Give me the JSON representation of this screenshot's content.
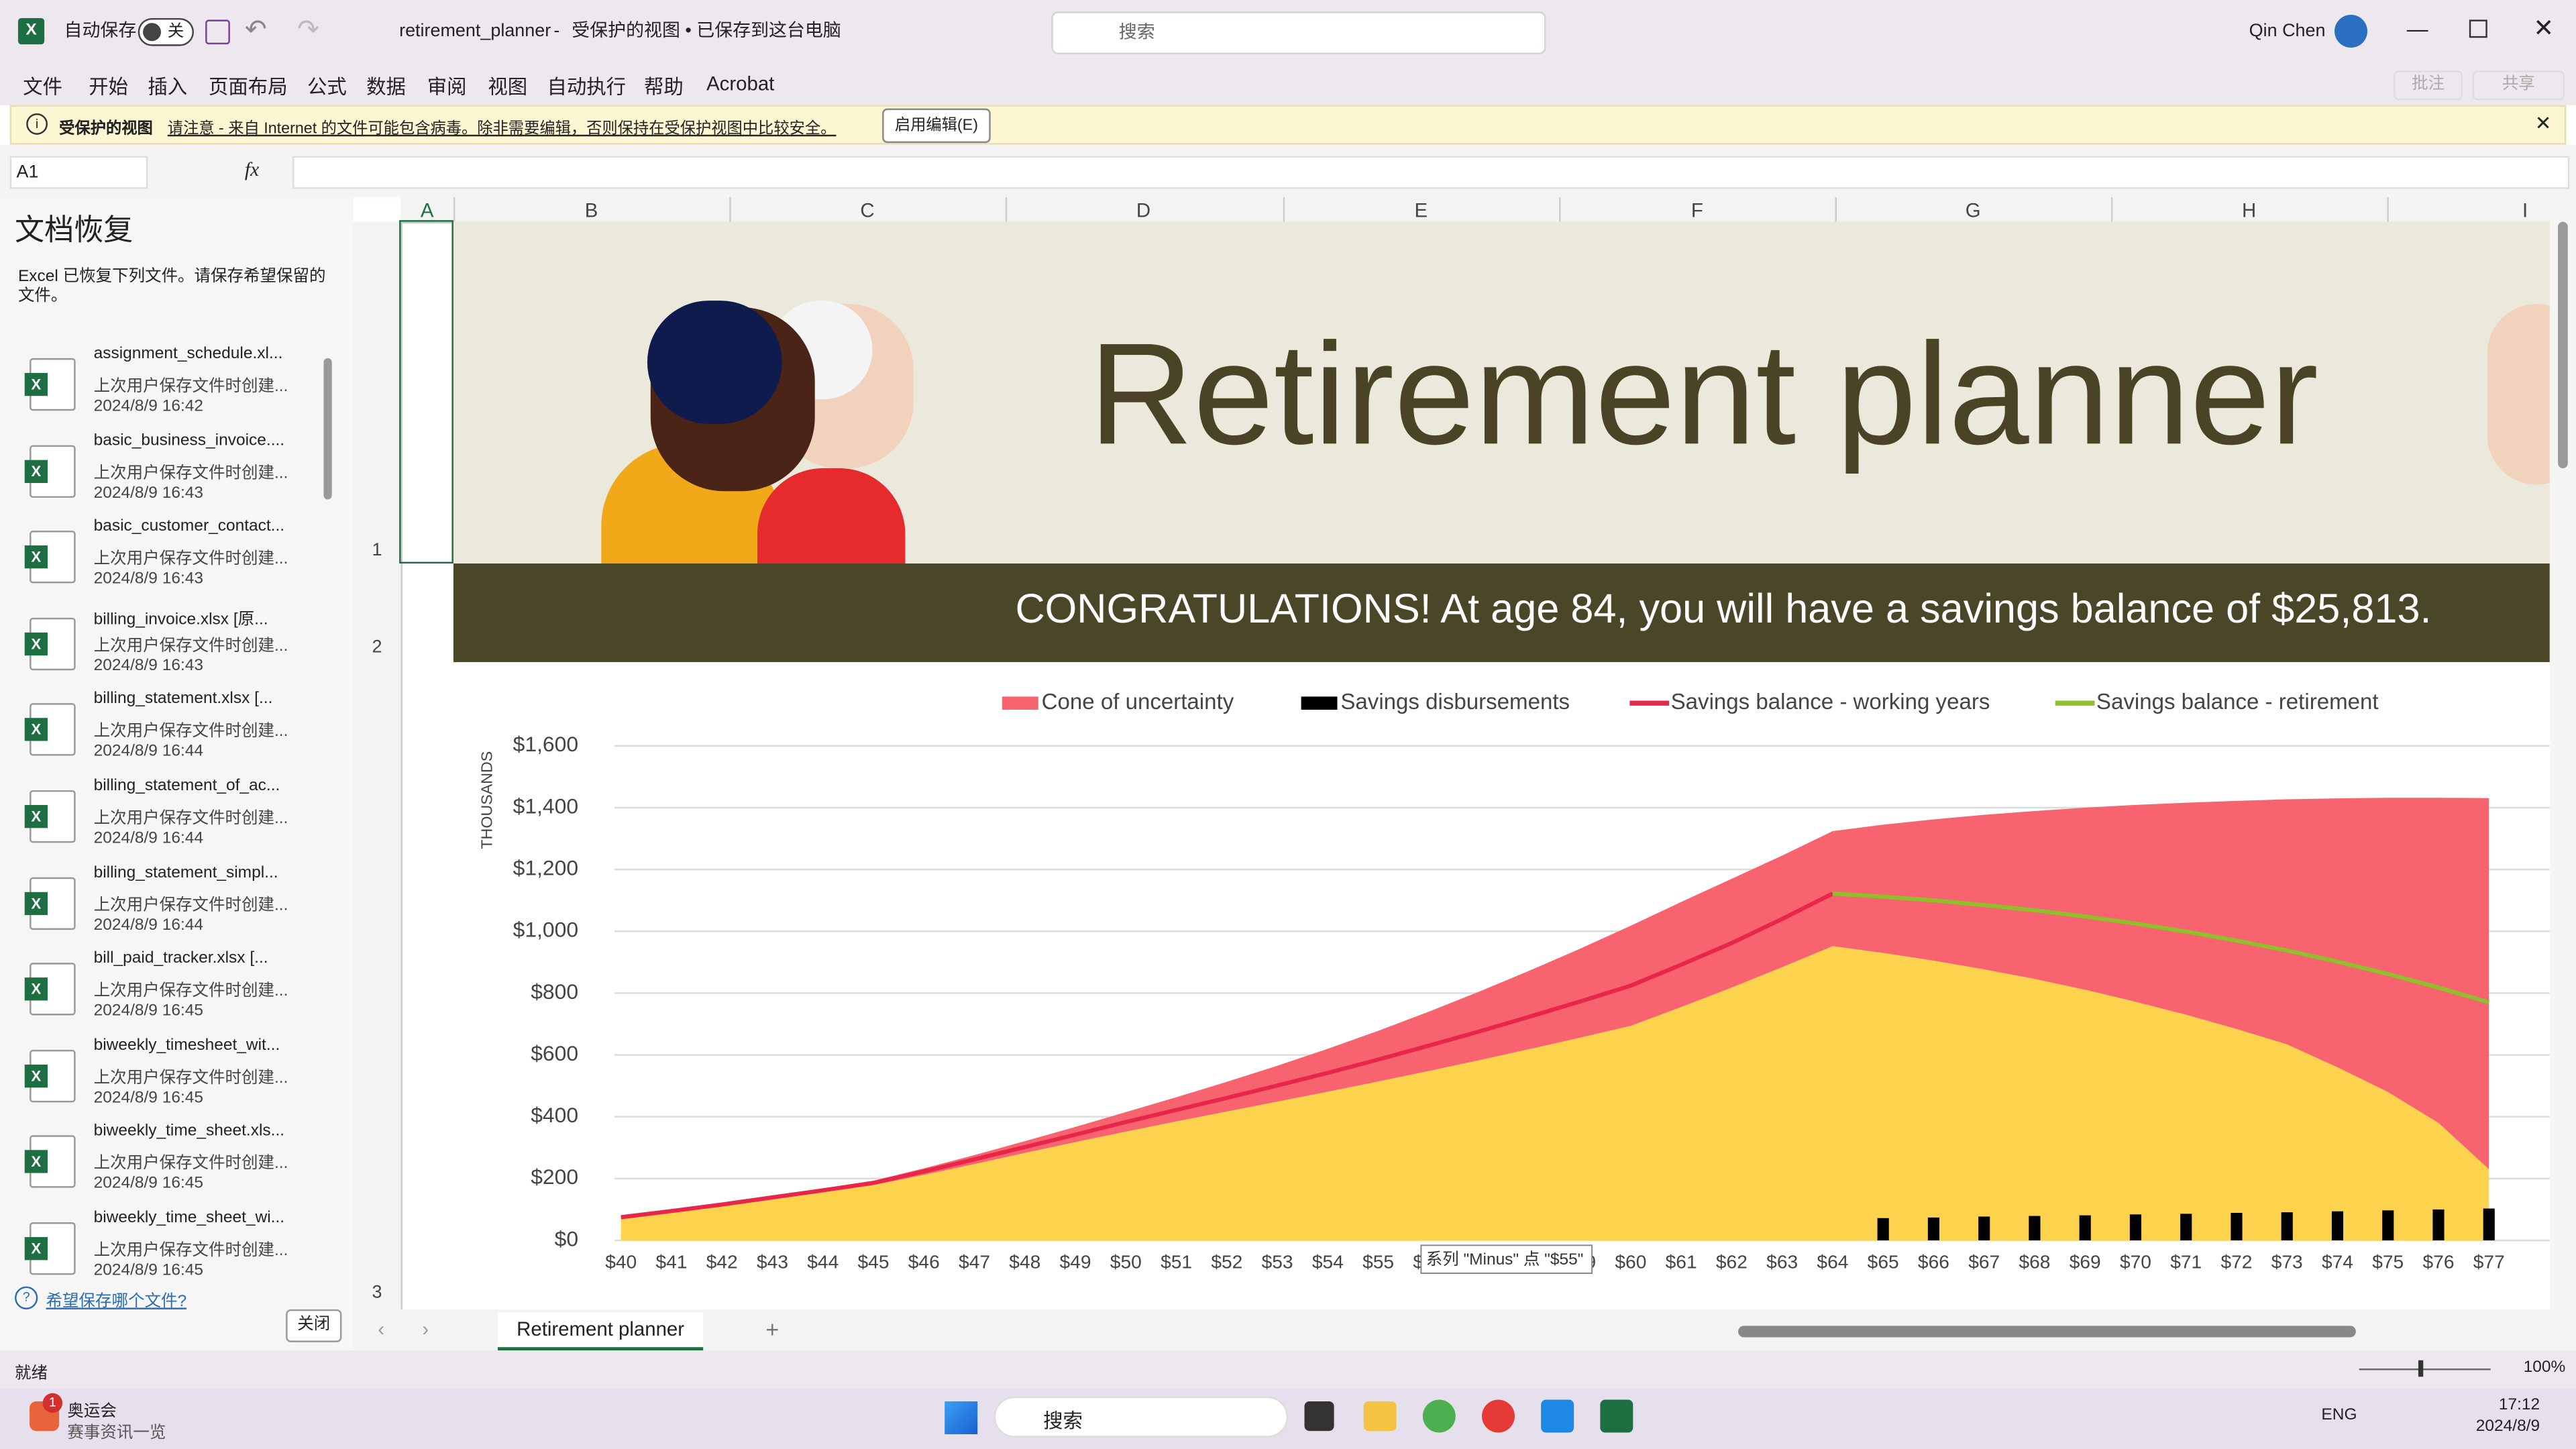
{
  "titlebar": {
    "autosave": "自动保存",
    "toggle": "关",
    "filename": "retirement_planner",
    "separator": "-",
    "status": "受保护的视图 • 已保存到这台电脑",
    "search": "搜索",
    "user": "Qin Chen"
  },
  "ribbon": {
    "tabs": [
      "文件",
      "开始",
      "插入",
      "页面布局",
      "公式",
      "数据",
      "审阅",
      "视图",
      "自动执行",
      "帮助",
      "Acrobat"
    ],
    "comments": "批注",
    "share": "共享"
  },
  "protected_view": {
    "label": "受保护的视图",
    "message": "请注意 - 来自 Internet 的文件可能包含病毒。除非需要编辑，否则保持在受保护视图中比较安全。",
    "button": "启用编辑(E)"
  },
  "formula_bar": {
    "name_box": "A1",
    "fx": "fx"
  },
  "recovery": {
    "title": "文档恢复",
    "description": "Excel 已恢复下列文件。请保存希望保留的文件。",
    "files": [
      {
        "name": "assignment_schedule.xl...",
        "note": "上次用户保存文件时创建...",
        "time": "2024/8/9 16:42"
      },
      {
        "name": "basic_business_invoice....",
        "note": "上次用户保存文件时创建...",
        "time": "2024/8/9 16:43"
      },
      {
        "name": "basic_customer_contact...",
        "note": "上次用户保存文件时创建...",
        "time": "2024/8/9 16:43"
      },
      {
        "name": "billing_invoice.xlsx [原...",
        "note": "上次用户保存文件时创建...",
        "time": "2024/8/9 16:43"
      },
      {
        "name": "billing_statement.xlsx [...",
        "note": "上次用户保存文件时创建...",
        "time": "2024/8/9 16:44"
      },
      {
        "name": "billing_statement_of_ac...",
        "note": "上次用户保存文件时创建...",
        "time": "2024/8/9 16:44"
      },
      {
        "name": "billing_statement_simpl...",
        "note": "上次用户保存文件时创建...",
        "time": "2024/8/9 16:44"
      },
      {
        "name": "bill_paid_tracker.xlsx [...",
        "note": "上次用户保存文件时创建...",
        "time": "2024/8/9 16:45"
      },
      {
        "name": "biweekly_timesheet_wit...",
        "note": "上次用户保存文件时创建...",
        "time": "2024/8/9 16:45"
      },
      {
        "name": "biweekly_time_sheet.xls...",
        "note": "上次用户保存文件时创建...",
        "time": "2024/8/9 16:45"
      },
      {
        "name": "biweekly_time_sheet_wi...",
        "note": "上次用户保存文件时创建...",
        "time": "2024/8/9 16:45"
      }
    ],
    "link": "希望保存哪个文件?",
    "close": "关闭"
  },
  "sheet": {
    "columns": [
      "A",
      "B",
      "C",
      "D",
      "E",
      "F",
      "G",
      "H",
      "I"
    ],
    "rows": [
      1,
      2,
      3
    ],
    "title": "Retirement planner",
    "banner": "CONGRATULATIONS! At age 84, you will have a savings balance of $25,813."
  },
  "chart_data": {
    "type": "combo",
    "y_label": "THOUSANDS",
    "tooltip": "系列 \"Minus\" 点 \"$55\"",
    "grid": true,
    "categories": [
      "$40",
      "$41",
      "$42",
      "$43",
      "$44",
      "$45",
      "$46",
      "$47",
      "$48",
      "$49",
      "$50",
      "$51",
      "$52",
      "$53",
      "$54",
      "$55",
      "$56",
      "$57",
      "$58",
      "$59",
      "$60",
      "$61",
      "$62",
      "$63",
      "$64",
      "$65",
      "$66",
      "$67",
      "$68",
      "$69",
      "$70",
      "$71",
      "$72",
      "$73",
      "$74",
      "$75",
      "$76",
      "$77"
    ],
    "ylim": [
      0,
      1600
    ],
    "yticks": [
      {
        "value": 0,
        "label": "$0"
      },
      {
        "value": 200,
        "label": "$200"
      },
      {
        "value": 400,
        "label": "$400"
      },
      {
        "value": 600,
        "label": "$600"
      },
      {
        "value": 800,
        "label": "$800"
      },
      {
        "value": 1000,
        "label": "$1,000"
      },
      {
        "value": 1200,
        "label": "$1,200"
      },
      {
        "value": 1400,
        "label": "$1,400"
      },
      {
        "value": 1600,
        "label": "$1,600"
      }
    ],
    "series": [
      {
        "name": "Minus",
        "type": "area",
        "in_legend": false,
        "color": "#fdd34d",
        "values": [
          75,
          94,
          114,
          136,
          157,
          179,
          212,
          247,
          283,
          318,
          352,
          385,
          417,
          449,
          481,
          514,
          548,
          583,
          619,
          656,
          694,
          755,
          818,
          884,
          952,
          930,
          905,
          877,
          846,
          811,
          772,
          730,
          684,
          634,
          560,
          480,
          380,
          230
        ]
      },
      {
        "name": "Cone of uncertainty",
        "type": "area",
        "stacked": true,
        "color": "#f7636f",
        "values": [
          0,
          2,
          4,
          6,
          10,
          14,
          21,
          29,
          38,
          49,
          63,
          78,
          96,
          116,
          139,
          164,
          192,
          222,
          254,
          288,
          324,
          340,
          352,
          361,
          372,
          415,
          457,
          500,
          543,
          589,
          637,
          686,
          738,
          793,
          870,
          952,
          1052,
          1201
        ]
      },
      {
        "name": "Savings disbursements",
        "type": "bar",
        "color": "#000000",
        "values": [
          null,
          null,
          null,
          null,
          null,
          null,
          null,
          null,
          null,
          null,
          null,
          null,
          null,
          null,
          null,
          null,
          null,
          null,
          null,
          null,
          null,
          null,
          null,
          null,
          null,
          72,
          74,
          77,
          79,
          81,
          84,
          86,
          89,
          91,
          94,
          97,
          100,
          103
        ]
      },
      {
        "name": "Savings balance - working years",
        "type": "line",
        "color": "#e8264a",
        "values": [
          75,
          95,
          116,
          139,
          162,
          186,
          223,
          262,
          302,
          342,
          383,
          422,
          461,
          501,
          542,
          585,
          630,
          676,
          724,
          773,
          824,
          892,
          962,
          1040,
          1122,
          null,
          null,
          null,
          null,
          null,
          null,
          null,
          null,
          null,
          null,
          null,
          null,
          null
        ]
      },
      {
        "name": "Savings balance - retirement",
        "type": "line",
        "color": "#8fbf2a",
        "values": [
          null,
          null,
          null,
          null,
          null,
          null,
          null,
          null,
          null,
          null,
          null,
          null,
          null,
          null,
          null,
          null,
          null,
          null,
          null,
          null,
          null,
          null,
          null,
          null,
          1122,
          1112,
          1100,
          1085,
          1068,
          1048,
          1025,
          999,
          970,
          938,
          902,
          862,
          818,
          770
        ]
      }
    ]
  },
  "sheet_tabs": {
    "active": "Retirement planner"
  },
  "status_bar": {
    "ready": "就绪",
    "zoom": "100%"
  },
  "taskbar": {
    "badge": "1",
    "news_title": "奥运会",
    "news_sub": "赛事资讯一览",
    "search": "搜索",
    "language": "ENG",
    "time": "17:12",
    "date": "2024/8/9"
  }
}
